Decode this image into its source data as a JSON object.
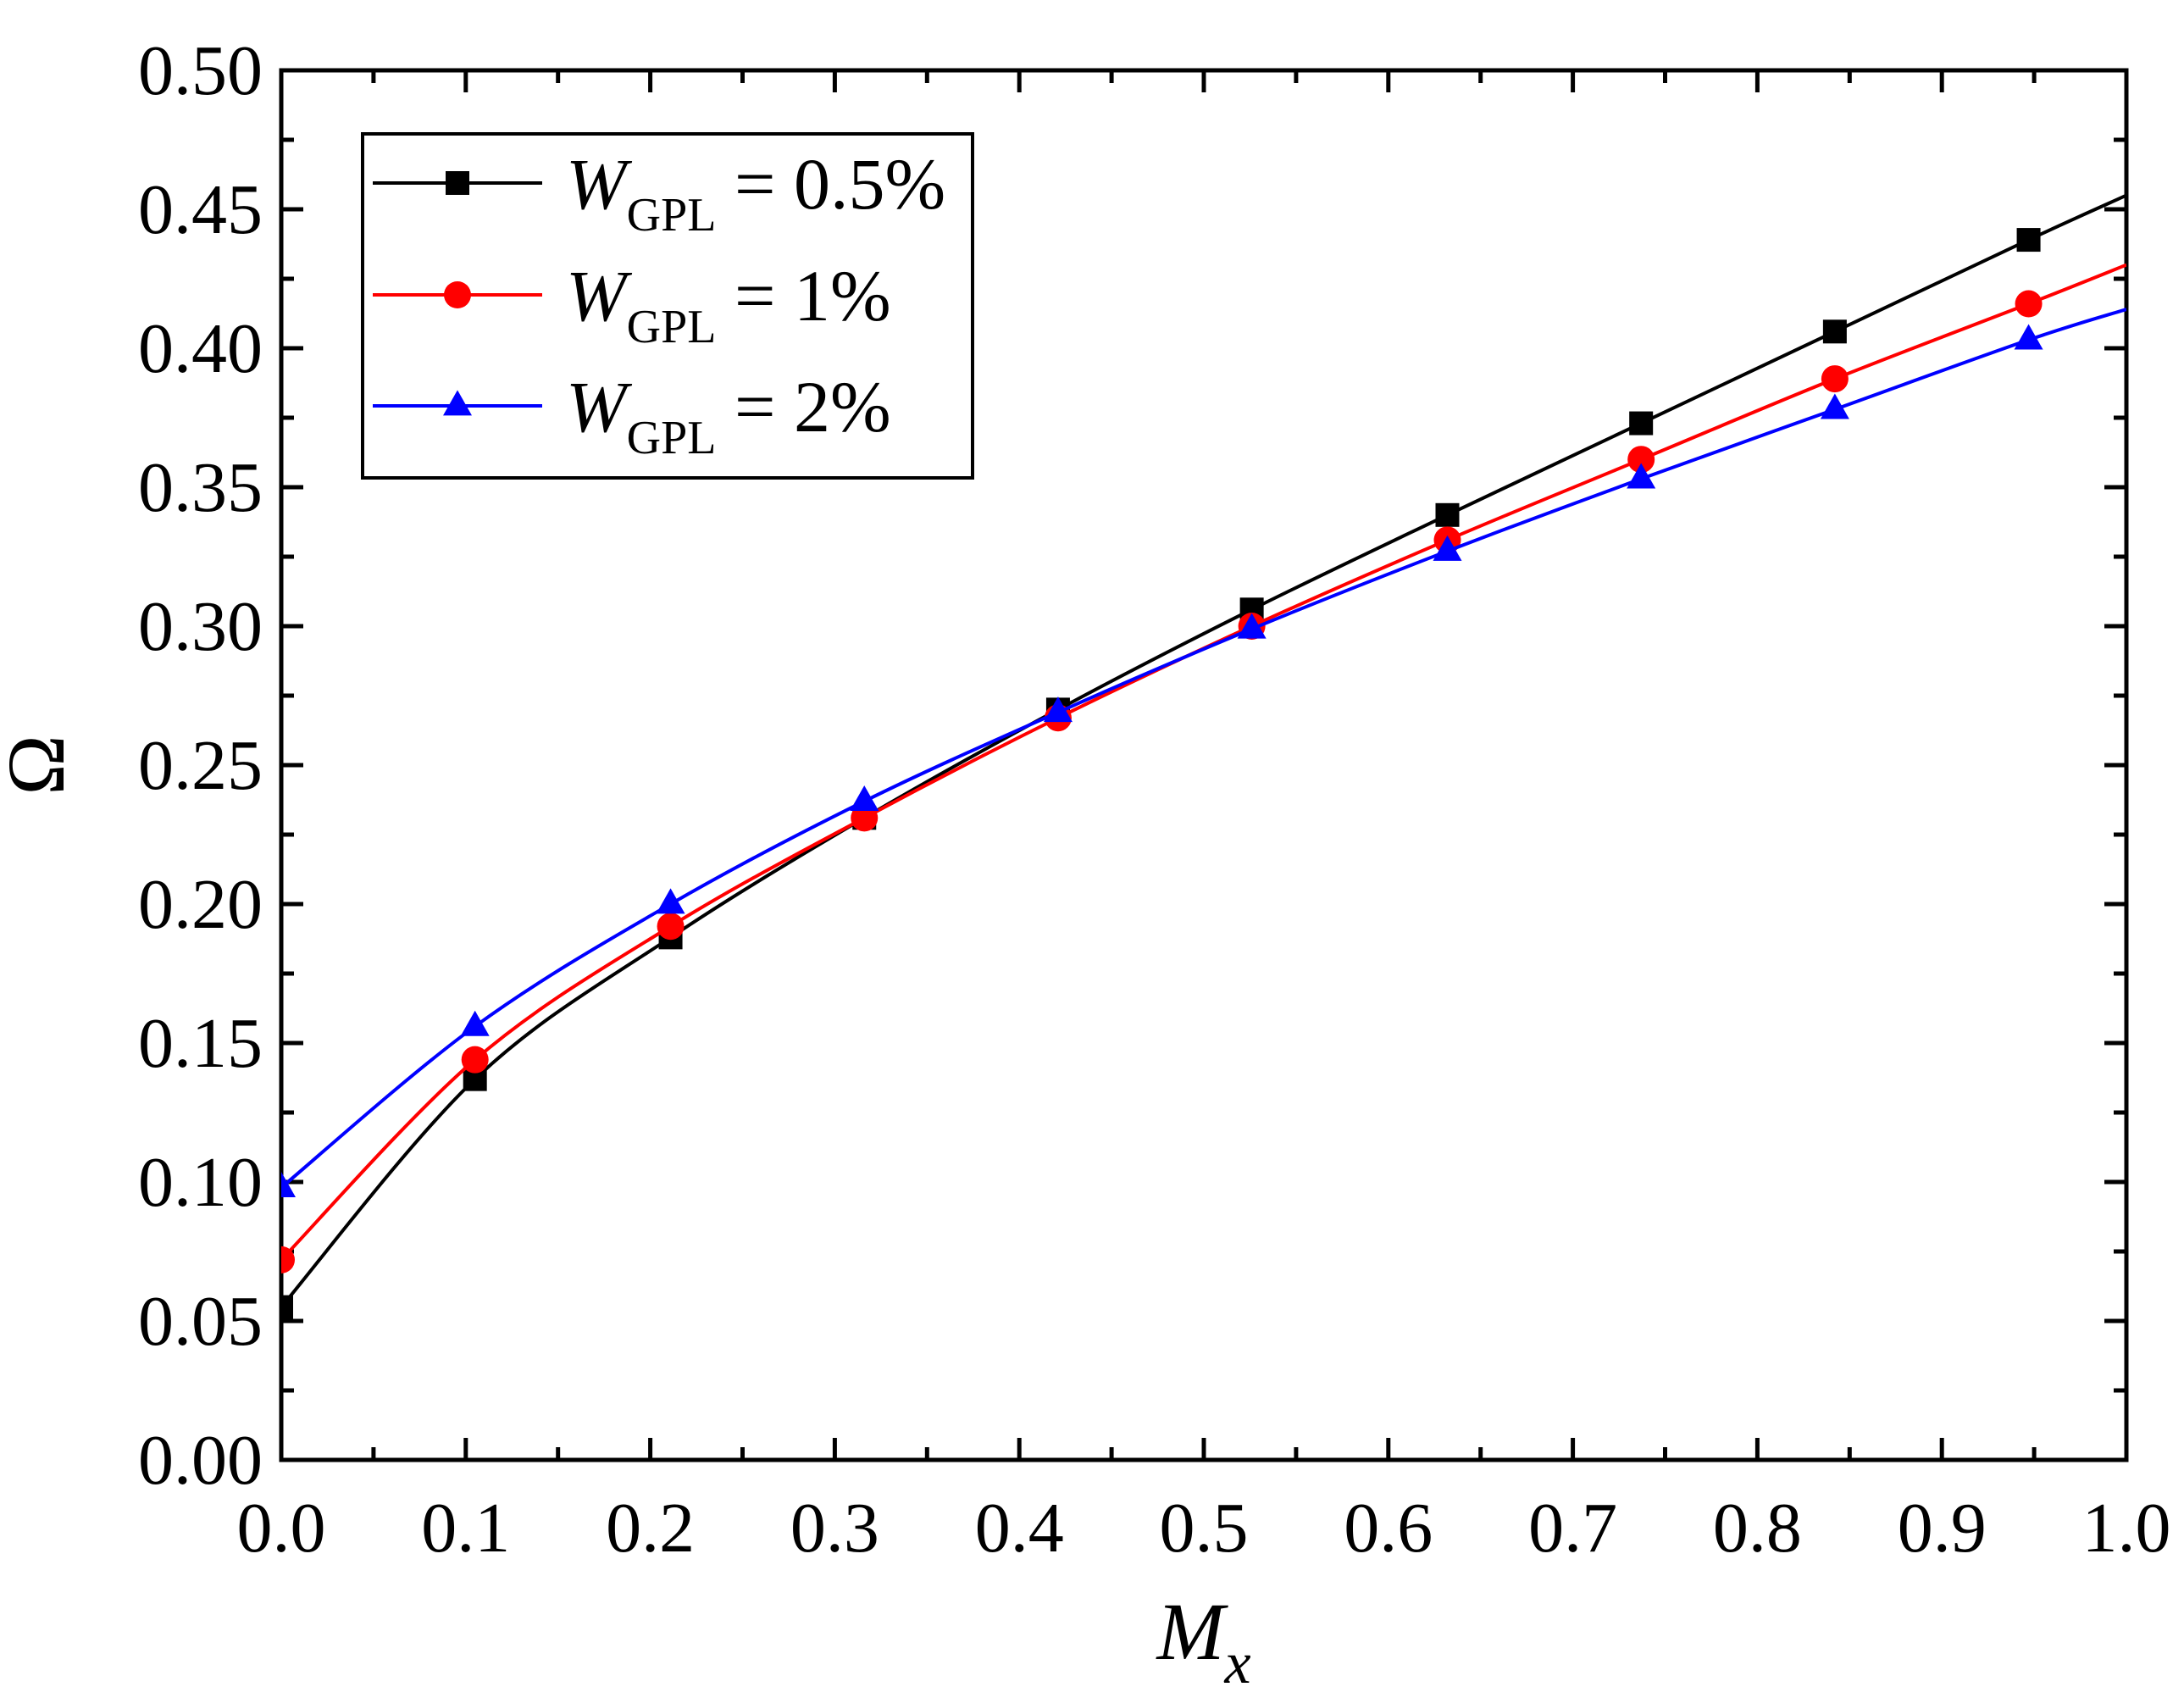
{
  "chart_data": {
    "type": "line",
    "title": "",
    "xlabel": "M",
    "xlabel_sub": "x",
    "ylabel": "Ω",
    "xlim": [
      0.0,
      1.0
    ],
    "ylim": [
      0.0,
      0.5
    ],
    "x_ticks": [
      "0.0",
      "0.1",
      "0.2",
      "0.3",
      "0.4",
      "0.5",
      "0.6",
      "0.7",
      "0.8",
      "0.9",
      "1.0"
    ],
    "y_ticks": [
      "0.00",
      "0.05",
      "0.10",
      "0.15",
      "0.20",
      "0.25",
      "0.30",
      "0.35",
      "0.40",
      "0.45",
      "0.50"
    ],
    "grid": false,
    "legend_position": "top-left",
    "x": [
      0.0,
      0.105,
      0.211,
      0.316,
      0.421,
      0.526,
      0.632,
      0.737,
      0.842,
      0.947
    ],
    "series": [
      {
        "name": "W_GPL = 0.5%",
        "label_main": "W",
        "label_sub": "GPL",
        "label_rest": " = 0.5%",
        "color": "#000000",
        "marker": "square",
        "values": [
          0.055,
          0.137,
          0.188,
          0.231,
          0.27,
          0.306,
          0.34,
          0.373,
          0.406,
          0.439
        ],
        "line_end": 0.455
      },
      {
        "name": "W_GPL = 1%",
        "label_main": "W",
        "label_sub": "GPL",
        "label_rest": " = 1%",
        "color": "#ff0000",
        "marker": "circle",
        "values": [
          0.072,
          0.144,
          0.192,
          0.231,
          0.267,
          0.3,
          0.331,
          0.36,
          0.389,
          0.416
        ],
        "line_end": 0.43
      },
      {
        "name": "W_GPL = 2%",
        "label_main": "W",
        "label_sub": "GPL",
        "label_rest": " = 2%",
        "color": "#0000ff",
        "marker": "triangle",
        "values": [
          0.098,
          0.156,
          0.2,
          0.237,
          0.269,
          0.299,
          0.327,
          0.353,
          0.378,
          0.403
        ],
        "line_end": 0.414
      }
    ]
  }
}
